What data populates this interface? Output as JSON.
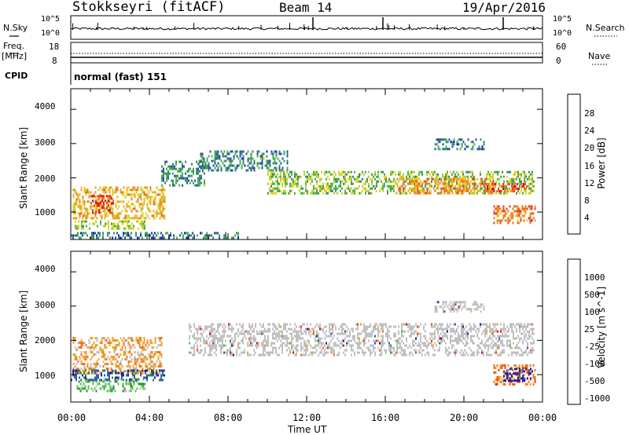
{
  "header": {
    "station": "Stokkseyri (fitACF)",
    "beam": "Beam 14",
    "date": "19/Apr/2016"
  },
  "strip_panels": {
    "nsky_label": "N.Sky",
    "nsky_ticks": [
      "10^5",
      "10^0"
    ],
    "nsearch_label": "N.Search",
    "nsearch_ticks": [
      "10^5",
      "10^0"
    ],
    "freq_label": "Freq.",
    "freq_unit": "[MHz]",
    "freq_ticks": [
      "18",
      "8"
    ],
    "nave_label": "Nave",
    "nave_ticks": [
      "60",
      "0"
    ],
    "cpid_label": "CPID",
    "cpid_value": "normal (fast) 151"
  },
  "colors": {
    "power_scale": [
      "#1020d8",
      "#2850a8",
      "#3c8a6a",
      "#48b04a",
      "#b8d030",
      "#f0d020",
      "#f0a020",
      "#f07020",
      "#e84020",
      "#e01010"
    ],
    "velocity_scale": [
      "#2020a0",
      "#3a5ab8",
      "#2e8a3a",
      "#4cc840",
      "#bfbfbf",
      "#bfbfbf",
      "#f0a020",
      "#f07020",
      "#f04010",
      "#e01010"
    ],
    "ground_scatter": "#bfbfbf"
  },
  "chart_data": [
    {
      "type": "heatmap",
      "name": "Power",
      "xlabel": "",
      "ylabel": "Slant Range [km]",
      "xlim": [
        0,
        24
      ],
      "ylim": [
        200,
        4600
      ],
      "yticks": [
        "4000",
        "3000",
        "2000",
        "1000"
      ],
      "colorbar": {
        "label": "Power [dB]",
        "range": [
          0,
          32
        ],
        "ticks": [
          "28",
          "24",
          "20",
          "16",
          "12",
          "8",
          "4"
        ]
      },
      "echo_regions": [
        {
          "t": [
            0.1,
            4.8
          ],
          "r": [
            850,
            1750
          ],
          "level": 19
        },
        {
          "t": [
            1.0,
            2.2
          ],
          "r": [
            1000,
            1500
          ],
          "level": 29
        },
        {
          "t": [
            0.2,
            3.8
          ],
          "r": [
            550,
            760
          ],
          "level": 14
        },
        {
          "t": [
            0.0,
            8.5
          ],
          "r": [
            220,
            420
          ],
          "level": 7
        },
        {
          "t": [
            4.6,
            6.8
          ],
          "r": [
            1800,
            2500
          ],
          "level": 8
        },
        {
          "t": [
            6.5,
            11.0
          ],
          "r": [
            2200,
            2800
          ],
          "level": 8
        },
        {
          "t": [
            10.0,
            23.6
          ],
          "r": [
            1550,
            2200
          ],
          "level": 13
        },
        {
          "t": [
            16.5,
            21.5
          ],
          "r": [
            1550,
            2000
          ],
          "level": 22
        },
        {
          "t": [
            21.0,
            23.2
          ],
          "r": [
            1600,
            1850
          ],
          "level": 27
        },
        {
          "t": [
            21.5,
            23.6
          ],
          "r": [
            700,
            1200
          ],
          "level": 24
        },
        {
          "t": [
            18.5,
            21.0
          ],
          "r": [
            2850,
            3150
          ],
          "level": 7
        }
      ]
    },
    {
      "type": "heatmap",
      "name": "Velocity",
      "xlabel": "Time UT",
      "ylabel": "Slant Range [km]",
      "xlim": [
        0,
        24
      ],
      "ylim": [
        200,
        4600
      ],
      "xticks": [
        "00:00",
        "04:00",
        "08:00",
        "12:00",
        "16:00",
        "20:00",
        "00:00"
      ],
      "yticks": [
        "4000",
        "3000",
        "2000",
        "1000"
      ],
      "colorbar": {
        "label": "Velocity [m s^-1]",
        "ticks": [
          "1000",
          "500",
          "100",
          "25",
          "-25",
          "-100",
          "-500",
          "-1000"
        ]
      },
      "echo_regions": [
        {
          "t": [
            0.1,
            4.6
          ],
          "r": [
            1000,
            2100
          ],
          "class": "-100"
        },
        {
          "t": [
            0.3,
            3.8
          ],
          "r": [
            550,
            900
          ],
          "class": "100"
        },
        {
          "t": [
            0.0,
            4.8
          ],
          "r": [
            850,
            1150
          ],
          "class": "500"
        },
        {
          "t": [
            6.0,
            23.6
          ],
          "r": [
            1550,
            2500
          ],
          "class": "ground"
        },
        {
          "t": [
            18.5,
            21.0
          ],
          "r": [
            2850,
            3150
          ],
          "class": "ground"
        },
        {
          "t": [
            21.5,
            23.6
          ],
          "r": [
            700,
            1300
          ],
          "class": "-500"
        },
        {
          "t": [
            22.0,
            23.5
          ],
          "r": [
            800,
            1200
          ],
          "class": "1000"
        }
      ]
    }
  ]
}
